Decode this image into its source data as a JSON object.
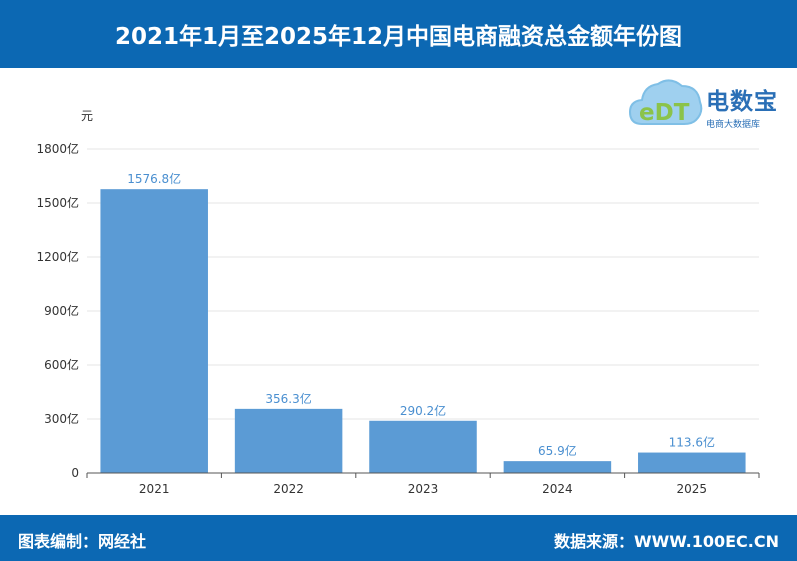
{
  "header": {
    "title": "2021年1月至2025年12月中国电商融资总金额年份图"
  },
  "logo": {
    "name": "电数宝",
    "subtitle": "电商大数据库",
    "mark": "eDT"
  },
  "footer": {
    "left": "图表编制：网经社",
    "right": "数据来源：WWW.100EC.CN"
  },
  "colors": {
    "bar": "#5b9bd5",
    "header_bg": "#0c68b3",
    "label": "#4a8fd0"
  },
  "chart_data": {
    "type": "bar",
    "ylabel": "元",
    "categories": [
      "2021",
      "2022",
      "2023",
      "2024",
      "2025"
    ],
    "values": [
      1576.8,
      356.3,
      290.2,
      65.9,
      113.6
    ],
    "data_labels": [
      "1576.8亿",
      "356.3亿",
      "290.2亿",
      "65.9亿",
      "113.6亿"
    ],
    "ylim": [
      0,
      1800
    ],
    "yticks": [
      0,
      300,
      600,
      900,
      1200,
      1500,
      1800
    ],
    "ytick_labels": [
      "0",
      "300亿",
      "600亿",
      "900亿",
      "1200亿",
      "1500亿",
      "1800亿"
    ],
    "grid": true
  }
}
